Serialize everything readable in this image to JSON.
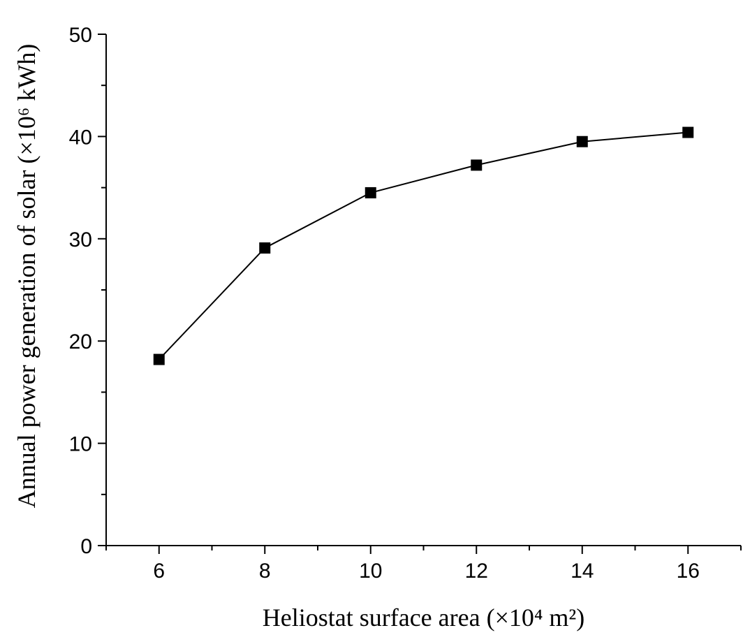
{
  "chart_data": {
    "type": "line",
    "xlabel": "Heliostat surface area (×10⁴ m²)",
    "ylabel": "Annual power generation of solar (×10⁶ kWh)",
    "xlim": [
      5,
      17
    ],
    "ylim": [
      0,
      50
    ],
    "x_ticks": [
      "6",
      "8",
      "10",
      "12",
      "14",
      "16"
    ],
    "y_ticks": [
      "0",
      "10",
      "20",
      "30",
      "40",
      "50"
    ],
    "grid": false,
    "marker": "square",
    "series": [
      {
        "x": [
          6,
          8,
          10,
          12,
          14,
          16
        ],
        "values": [
          18.2,
          29.1,
          34.5,
          37.2,
          39.5,
          40.4
        ]
      }
    ]
  }
}
